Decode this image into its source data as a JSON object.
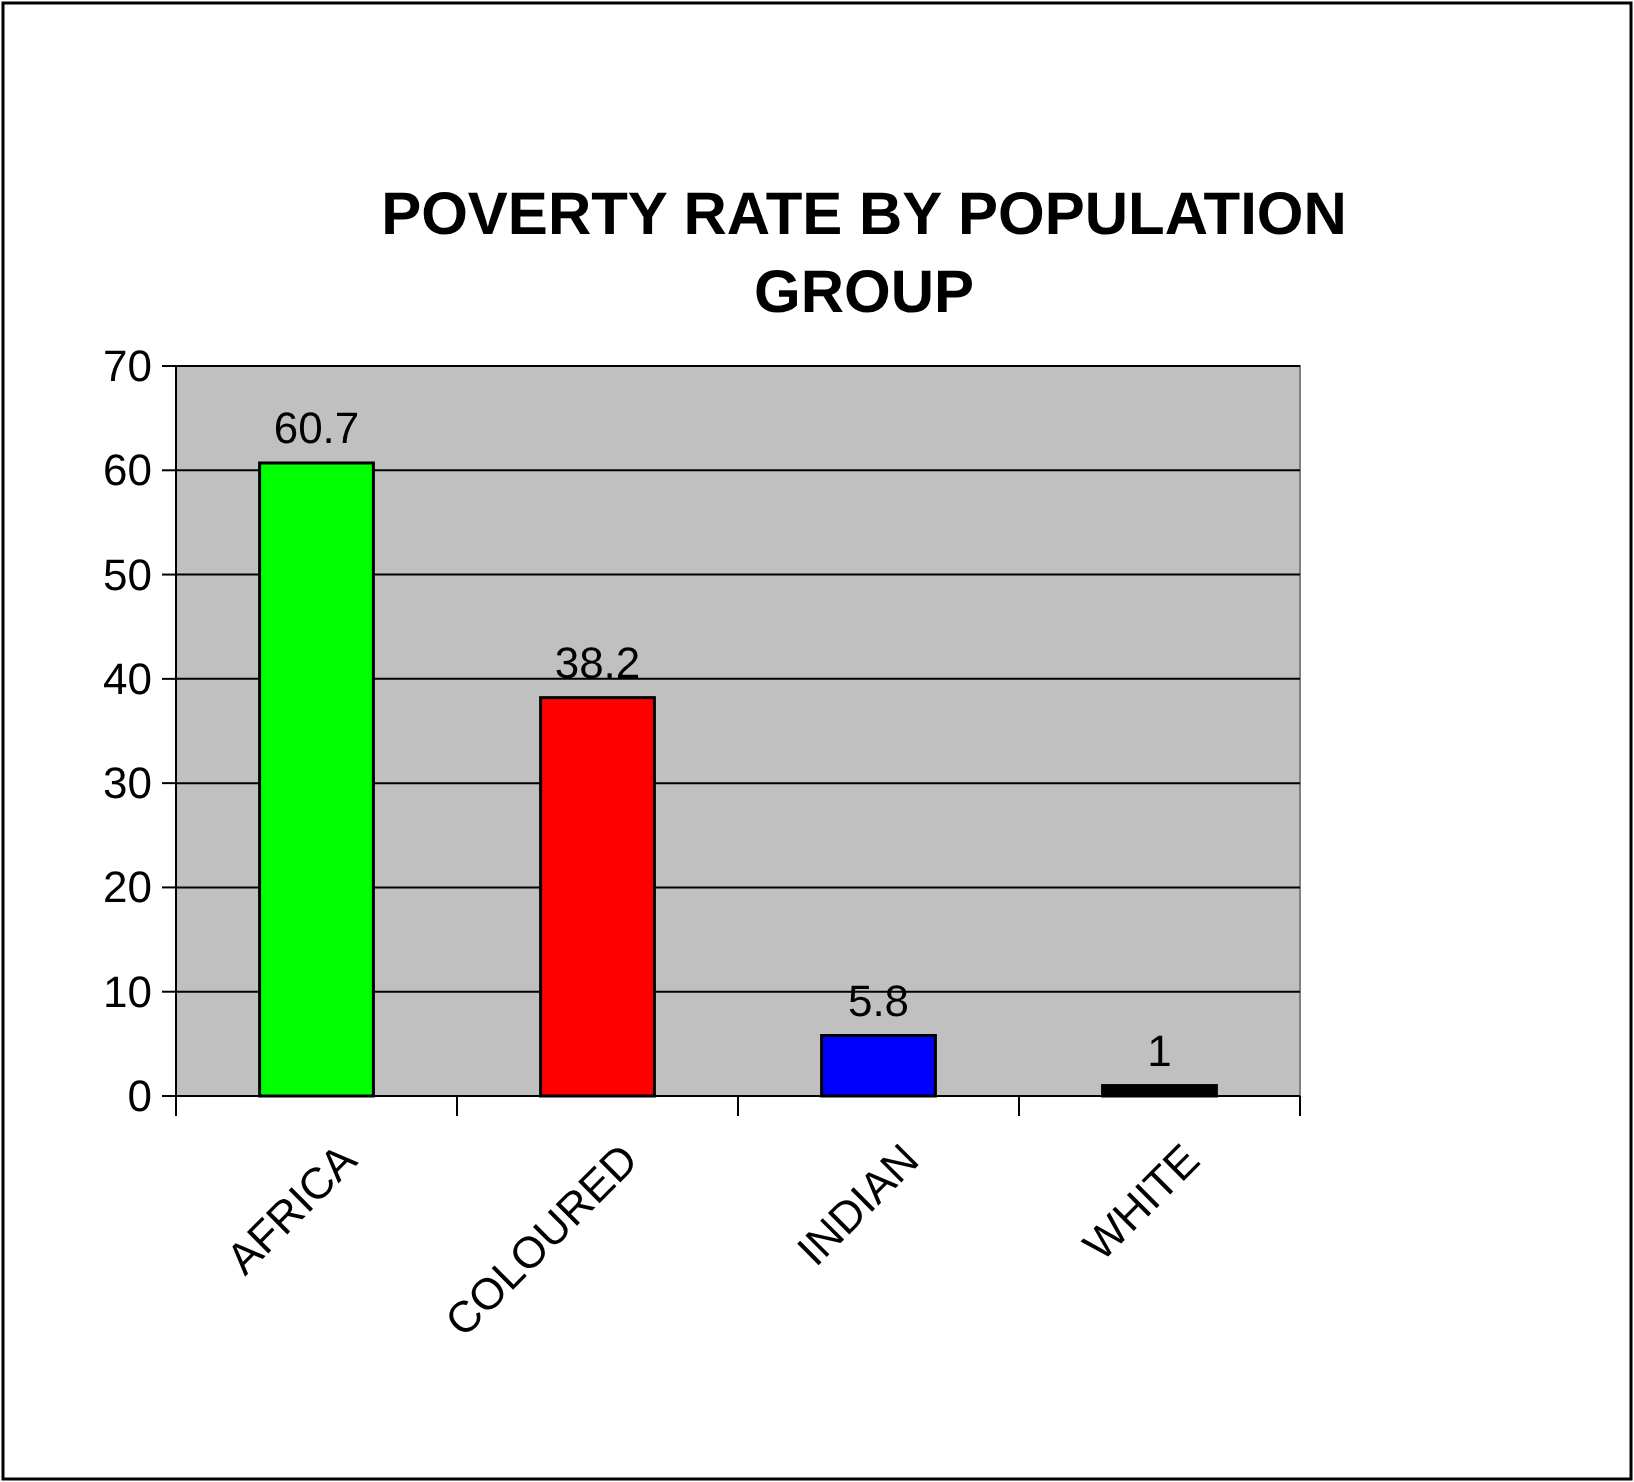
{
  "chart_data": {
    "type": "bar",
    "title": "POVERTY RATE BY POPULATION GROUP",
    "categories": [
      "AFRICA",
      "COLOURED",
      "INDIAN",
      "WHITE"
    ],
    "values": [
      60.7,
      38.2,
      5.8,
      1
    ],
    "colors": [
      "#00ff00",
      "#ff0000",
      "#0000ff",
      "#000000"
    ],
    "ylim": [
      0,
      70
    ],
    "yticks": [
      0,
      10,
      20,
      30,
      40,
      50,
      60,
      70
    ],
    "grid": "y",
    "data_labels": true
  }
}
